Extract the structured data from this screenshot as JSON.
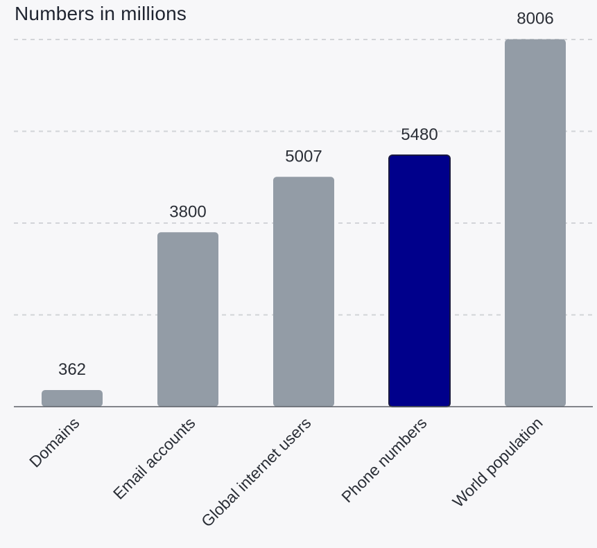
{
  "chart_data": {
    "type": "bar",
    "title": "Numbers in millions",
    "categories": [
      "Domains",
      "Email accounts",
      "Global internet users",
      "Phone numbers",
      "World population"
    ],
    "values": [
      362,
      3800,
      5007,
      5480,
      8006
    ],
    "highlight_index": 3,
    "colors": {
      "bar": "#939ca6",
      "highlight": "#00008b",
      "highlight_border": "#1a1a40"
    },
    "ylim": [
      0,
      8000
    ],
    "grid": true,
    "xlabel": "",
    "ylabel": ""
  }
}
